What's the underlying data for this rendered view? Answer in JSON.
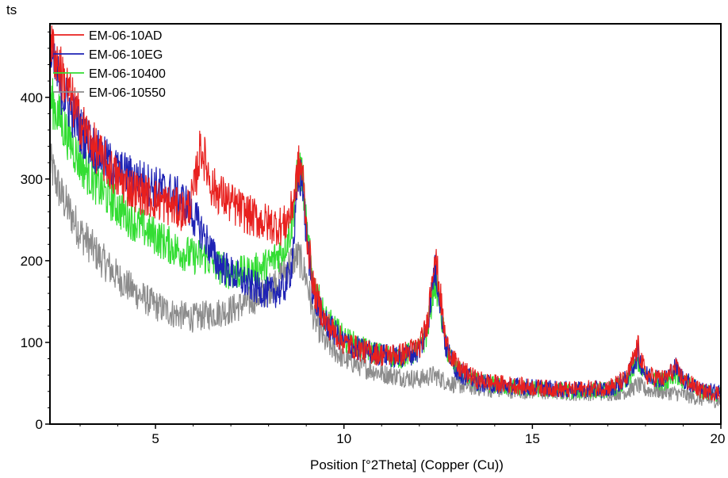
{
  "chart_data": {
    "type": "line",
    "title": "",
    "ylabel_fragment": "ts",
    "xlabel": "Position [°2Theta] (Copper (Cu))",
    "ylabel": "",
    "xlim": [
      2.2,
      20
    ],
    "ylim": [
      0,
      490
    ],
    "x_ticks": [
      5,
      10,
      15,
      20
    ],
    "y_ticks": [
      0,
      100,
      200,
      300,
      400
    ],
    "legend_position": "top-left",
    "grid": false,
    "series": [
      {
        "name": "EM-06-10AD",
        "color": "#e8201e",
        "points": [
          [
            2.2,
            470
          ],
          [
            2.5,
            430
          ],
          [
            3.0,
            370
          ],
          [
            3.5,
            330
          ],
          [
            4.0,
            300
          ],
          [
            4.5,
            285
          ],
          [
            5.0,
            275
          ],
          [
            5.5,
            265
          ],
          [
            5.8,
            260
          ],
          [
            6.0,
            280
          ],
          [
            6.2,
            340
          ],
          [
            6.3,
            325
          ],
          [
            6.5,
            290
          ],
          [
            7.0,
            270
          ],
          [
            7.5,
            255
          ],
          [
            8.0,
            245
          ],
          [
            8.4,
            242
          ],
          [
            8.6,
            260
          ],
          [
            8.8,
            315
          ],
          [
            8.9,
            310
          ],
          [
            9.0,
            240
          ],
          [
            9.2,
            165
          ],
          [
            9.5,
            125
          ],
          [
            10.0,
            100
          ],
          [
            10.5,
            90
          ],
          [
            11.0,
            85
          ],
          [
            11.5,
            85
          ],
          [
            12.0,
            95
          ],
          [
            12.2,
            120
          ],
          [
            12.4,
            210
          ],
          [
            12.5,
            180
          ],
          [
            12.7,
            100
          ],
          [
            13.0,
            70
          ],
          [
            13.5,
            55
          ],
          [
            14.0,
            50
          ],
          [
            15.0,
            45
          ],
          [
            16.0,
            42
          ],
          [
            17.0,
            45
          ],
          [
            17.5,
            55
          ],
          [
            17.8,
            95
          ],
          [
            18.0,
            60
          ],
          [
            18.5,
            55
          ],
          [
            18.8,
            68
          ],
          [
            19.0,
            55
          ],
          [
            19.5,
            40
          ],
          [
            20.0,
            38
          ]
        ]
      },
      {
        "name": "EM-06-10EG",
        "color": "#1e22b4",
        "points": [
          [
            2.2,
            450
          ],
          [
            2.5,
            410
          ],
          [
            3.0,
            360
          ],
          [
            3.5,
            330
          ],
          [
            4.0,
            310
          ],
          [
            4.5,
            300
          ],
          [
            5.0,
            290
          ],
          [
            5.5,
            280
          ],
          [
            5.8,
            270
          ],
          [
            6.0,
            255
          ],
          [
            6.3,
            230
          ],
          [
            6.6,
            200
          ],
          [
            7.0,
            185
          ],
          [
            7.5,
            170
          ],
          [
            8.0,
            160
          ],
          [
            8.4,
            165
          ],
          [
            8.6,
            190
          ],
          [
            8.8,
            300
          ],
          [
            8.9,
            300
          ],
          [
            9.0,
            230
          ],
          [
            9.2,
            155
          ],
          [
            9.5,
            125
          ],
          [
            10.0,
            100
          ],
          [
            10.5,
            90
          ],
          [
            11.0,
            85
          ],
          [
            11.5,
            82
          ],
          [
            12.0,
            90
          ],
          [
            12.2,
            115
          ],
          [
            12.4,
            190
          ],
          [
            12.5,
            170
          ],
          [
            12.7,
            95
          ],
          [
            13.0,
            65
          ],
          [
            13.5,
            52
          ],
          [
            14.0,
            48
          ],
          [
            15.0,
            45
          ],
          [
            16.0,
            42
          ],
          [
            17.0,
            42
          ],
          [
            17.5,
            55
          ],
          [
            17.8,
            85
          ],
          [
            18.0,
            60
          ],
          [
            18.5,
            55
          ],
          [
            18.8,
            70
          ],
          [
            19.0,
            55
          ],
          [
            19.5,
            42
          ],
          [
            20.0,
            38
          ]
        ]
      },
      {
        "name": "EM-06-10400",
        "color": "#33dd33",
        "points": [
          [
            2.2,
            400
          ],
          [
            2.5,
            370
          ],
          [
            3.0,
            320
          ],
          [
            3.5,
            290
          ],
          [
            4.0,
            265
          ],
          [
            4.5,
            245
          ],
          [
            5.0,
            230
          ],
          [
            5.5,
            215
          ],
          [
            6.0,
            205
          ],
          [
            6.3,
            205
          ],
          [
            6.6,
            195
          ],
          [
            7.0,
            185
          ],
          [
            7.5,
            185
          ],
          [
            8.0,
            195
          ],
          [
            8.4,
            215
          ],
          [
            8.6,
            240
          ],
          [
            8.8,
            315
          ],
          [
            8.9,
            305
          ],
          [
            9.0,
            240
          ],
          [
            9.2,
            170
          ],
          [
            9.5,
            130
          ],
          [
            10.0,
            105
          ],
          [
            10.5,
            92
          ],
          [
            11.0,
            85
          ],
          [
            11.5,
            82
          ],
          [
            12.0,
            90
          ],
          [
            12.2,
            110
          ],
          [
            12.4,
            175
          ],
          [
            12.5,
            160
          ],
          [
            12.7,
            95
          ],
          [
            13.0,
            65
          ],
          [
            13.5,
            52
          ],
          [
            14.0,
            48
          ],
          [
            15.0,
            43
          ],
          [
            16.0,
            40
          ],
          [
            17.0,
            42
          ],
          [
            17.5,
            50
          ],
          [
            17.8,
            78
          ],
          [
            18.0,
            58
          ],
          [
            18.5,
            52
          ],
          [
            18.8,
            62
          ],
          [
            19.0,
            52
          ],
          [
            19.5,
            40
          ],
          [
            20.0,
            36
          ]
        ]
      },
      {
        "name": "EM-06-10550",
        "color": "#8c8c8c",
        "points": [
          [
            2.2,
            320
          ],
          [
            2.5,
            280
          ],
          [
            3.0,
            235
          ],
          [
            3.5,
            205
          ],
          [
            4.0,
            180
          ],
          [
            4.5,
            160
          ],
          [
            5.0,
            145
          ],
          [
            5.5,
            135
          ],
          [
            6.0,
            130
          ],
          [
            6.5,
            135
          ],
          [
            7.0,
            140
          ],
          [
            7.5,
            150
          ],
          [
            8.0,
            165
          ],
          [
            8.4,
            185
          ],
          [
            8.6,
            200
          ],
          [
            8.8,
            205
          ],
          [
            9.0,
            180
          ],
          [
            9.2,
            130
          ],
          [
            9.5,
            100
          ],
          [
            10.0,
            80
          ],
          [
            10.5,
            70
          ],
          [
            11.0,
            62
          ],
          [
            11.5,
            58
          ],
          [
            12.0,
            55
          ],
          [
            12.4,
            60
          ],
          [
            12.7,
            52
          ],
          [
            13.0,
            48
          ],
          [
            13.5,
            45
          ],
          [
            14.0,
            42
          ],
          [
            15.0,
            40
          ],
          [
            16.0,
            38
          ],
          [
            17.0,
            38
          ],
          [
            17.5,
            40
          ],
          [
            17.8,
            48
          ],
          [
            18.0,
            42
          ],
          [
            18.5,
            40
          ],
          [
            19.0,
            36
          ],
          [
            19.5,
            30
          ],
          [
            20.0,
            28
          ]
        ]
      }
    ]
  }
}
